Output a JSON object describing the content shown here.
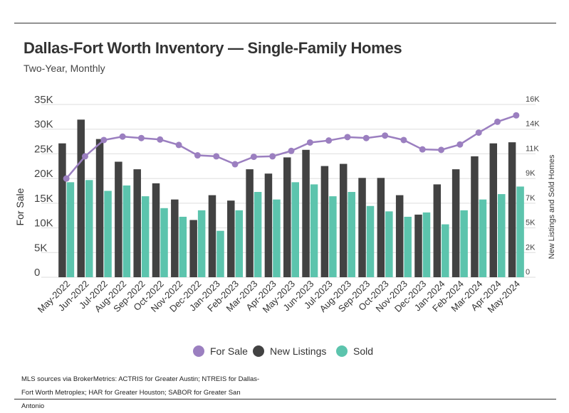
{
  "title": "Dallas-Fort Worth Inventory — Single-Family Homes",
  "subtitle": "Two-Year, Monthly",
  "source": "MLS sources via BrokerMetrics: ACTRIS for Greater Austin; NTREIS for Dallas-Fort Worth Metroplex; HAR for Greater Houston; SABOR for Greater San Antonio",
  "colors": {
    "for_sale": "#9b7fc0",
    "new_listings": "#424242",
    "sold": "#5cc4ad"
  },
  "chart_data": {
    "type": "bar",
    "categories": [
      "May-2022",
      "Jun-2022",
      "Jul-2022",
      "Aug-2022",
      "Sep-2022",
      "Oct-2022",
      "Nov-2022",
      "Dec-2022",
      "Jan-2023",
      "Feb-2023",
      "Mar-2023",
      "Apr-2023",
      "May-2023",
      "Jun-2023",
      "Jul-2023",
      "Aug-2023",
      "Sep-2023",
      "Oct-2023",
      "Nov-2023",
      "Dec-2023",
      "Jan-2024",
      "Feb-2024",
      "Mar-2024",
      "Apr-2024",
      "May-2024"
    ],
    "left_axis": {
      "label": "For Sale",
      "ylim": [
        0,
        35000
      ],
      "ticks": [
        "0",
        "5K",
        "10K",
        "15K",
        "20K",
        "25K",
        "30K",
        "35K"
      ]
    },
    "right_axis": {
      "label": "New Listings and Sold Homes",
      "ylim": [
        0,
        16000
      ],
      "ticks": [
        "0",
        "2K",
        "5K",
        "7K",
        "9K",
        "11K",
        "14K",
        "16K"
      ]
    },
    "series": [
      {
        "name": "For Sale",
        "type": "line",
        "axis": "left",
        "values": [
          20000,
          24500,
          27800,
          28500,
          28200,
          27900,
          26800,
          24700,
          24500,
          22900,
          24400,
          24500,
          25600,
          27300,
          27700,
          28400,
          28200,
          28700,
          27800,
          25900,
          25800,
          26900,
          29300,
          31500,
          32800
        ]
      },
      {
        "name": "New Listings",
        "type": "bar",
        "axis": "right",
        "values": [
          12400,
          14600,
          12800,
          10700,
          10000,
          8700,
          7200,
          5300,
          7600,
          7100,
          10000,
          9600,
          11100,
          11800,
          10300,
          10500,
          9200,
          9200,
          7600,
          5800,
          8600,
          10000,
          11200,
          12400,
          12500
        ]
      },
      {
        "name": "Sold",
        "type": "bar",
        "axis": "right",
        "values": [
          8800,
          9000,
          8000,
          8500,
          7500,
          6400,
          5600,
          6200,
          4300,
          6200,
          7900,
          7200,
          8800,
          8600,
          7500,
          7900,
          6600,
          6100,
          5600,
          6000,
          4900,
          6200,
          7200,
          7700,
          8400
        ]
      }
    ],
    "legend": [
      "For Sale",
      "New Listings",
      "Sold"
    ],
    "legend_position": "bottom",
    "grid": true
  }
}
